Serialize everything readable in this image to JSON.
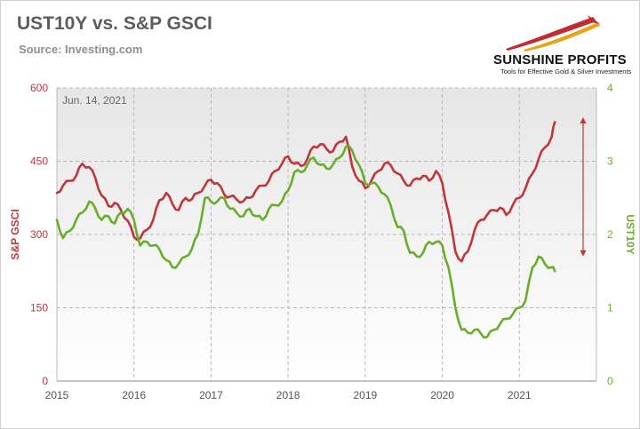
{
  "header": {
    "title": "UST10Y vs. S&P GSCI",
    "source": "Source: Investing.com"
  },
  "logo": {
    "name": "SUNSHINE PROFITS",
    "tagline": "Tools for Effective Gold & Silver Investments"
  },
  "colors": {
    "gsci": "#c0373b",
    "ust": "#6aad2c",
    "arrow": "#c0373b",
    "grid": "#b8b8b8",
    "plot_bg_top": "#e6e6e6",
    "plot_bg_bottom": "#ffffff"
  },
  "chart_data": {
    "type": "line",
    "title": "UST10Y vs. S&P GSCI",
    "annotation": "Jun. 14, 2021",
    "x_ticks": [
      "2015",
      "2016",
      "2017",
      "2018",
      "2019",
      "2020",
      "2021"
    ],
    "x_range": [
      2015.0,
      2022.0
    ],
    "left_axis": {
      "label": "S&P GSCI",
      "range": [
        0,
        600
      ],
      "ticks": [
        "0",
        "150",
        "300",
        "450",
        "600"
      ]
    },
    "right_axis": {
      "label": "UST10Y",
      "range": [
        0,
        4
      ],
      "ticks": [
        "0",
        "1",
        "2",
        "3",
        "4"
      ]
    },
    "grid": true,
    "series": [
      {
        "name": "S&P GSCI",
        "axis": "left",
        "x": [
          2015.0,
          2015.08,
          2015.17,
          2015.25,
          2015.33,
          2015.42,
          2015.5,
          2015.58,
          2015.67,
          2015.75,
          2015.83,
          2015.92,
          2016.0,
          2016.08,
          2016.17,
          2016.25,
          2016.33,
          2016.42,
          2016.5,
          2016.58,
          2016.67,
          2016.75,
          2016.83,
          2016.92,
          2017.0,
          2017.08,
          2017.17,
          2017.25,
          2017.33,
          2017.42,
          2017.5,
          2017.58,
          2017.67,
          2017.75,
          2017.83,
          2017.92,
          2018.0,
          2018.08,
          2018.17,
          2018.25,
          2018.33,
          2018.42,
          2018.5,
          2018.58,
          2018.67,
          2018.75,
          2018.83,
          2018.92,
          2019.0,
          2019.08,
          2019.17,
          2019.25,
          2019.33,
          2019.42,
          2019.5,
          2019.58,
          2019.67,
          2019.75,
          2019.83,
          2019.92,
          2020.0,
          2020.08,
          2020.17,
          2020.25,
          2020.33,
          2020.42,
          2020.5,
          2020.58,
          2020.67,
          2020.75,
          2020.83,
          2020.92,
          2021.0,
          2021.08,
          2021.17,
          2021.25,
          2021.33,
          2021.42,
          2021.46
        ],
        "y": [
          385,
          400,
          410,
          420,
          445,
          438,
          415,
          380,
          358,
          365,
          350,
          328,
          295,
          292,
          310,
          330,
          370,
          385,
          362,
          350,
          375,
          372,
          385,
          400,
          412,
          405,
          382,
          378,
          372,
          368,
          375,
          390,
          400,
          410,
          430,
          445,
          460,
          445,
          440,
          455,
          480,
          485,
          475,
          470,
          490,
          500,
          440,
          410,
          395,
          410,
          430,
          445,
          442,
          425,
          410,
          400,
          415,
          420,
          410,
          430,
          405,
          345,
          265,
          245,
          265,
          310,
          330,
          340,
          350,
          355,
          340,
          362,
          375,
          395,
          425,
          455,
          478,
          500,
          530
        ],
        "smooth": true
      },
      {
        "name": "UST10Y",
        "axis": "right",
        "x": [
          2015.0,
          2015.08,
          2015.17,
          2015.25,
          2015.33,
          2015.42,
          2015.5,
          2015.58,
          2015.67,
          2015.75,
          2015.83,
          2015.92,
          2016.0,
          2016.08,
          2016.17,
          2016.25,
          2016.33,
          2016.42,
          2016.5,
          2016.58,
          2016.67,
          2016.75,
          2016.83,
          2016.92,
          2017.0,
          2017.08,
          2017.17,
          2017.25,
          2017.33,
          2017.42,
          2017.5,
          2017.58,
          2017.67,
          2017.75,
          2017.83,
          2017.92,
          2018.0,
          2018.08,
          2018.17,
          2018.25,
          2018.33,
          2018.42,
          2018.5,
          2018.58,
          2018.67,
          2018.75,
          2018.83,
          2018.92,
          2019.0,
          2019.08,
          2019.17,
          2019.25,
          2019.33,
          2019.42,
          2019.5,
          2019.58,
          2019.67,
          2019.75,
          2019.83,
          2019.92,
          2020.0,
          2020.08,
          2020.17,
          2020.25,
          2020.33,
          2020.42,
          2020.5,
          2020.58,
          2020.67,
          2020.75,
          2020.83,
          2020.92,
          2021.0,
          2021.08,
          2021.17,
          2021.25,
          2021.33,
          2021.42,
          2021.46
        ],
        "y": [
          2.2,
          1.95,
          2.05,
          2.2,
          2.3,
          2.45,
          2.35,
          2.2,
          2.25,
          2.15,
          2.3,
          2.35,
          2.2,
          1.85,
          1.9,
          1.85,
          1.8,
          1.65,
          1.55,
          1.6,
          1.7,
          1.8,
          2.0,
          2.5,
          2.45,
          2.45,
          2.5,
          2.35,
          2.3,
          2.25,
          2.35,
          2.25,
          2.2,
          2.35,
          2.4,
          2.45,
          2.6,
          2.85,
          2.85,
          2.95,
          3.05,
          2.95,
          2.9,
          2.95,
          3.05,
          3.2,
          3.15,
          2.95,
          2.7,
          2.7,
          2.65,
          2.55,
          2.4,
          2.1,
          2.05,
          1.75,
          1.7,
          1.75,
          1.9,
          1.9,
          1.85,
          1.55,
          1.0,
          0.7,
          0.66,
          0.7,
          0.65,
          0.6,
          0.7,
          0.78,
          0.85,
          0.92,
          1.0,
          1.1,
          1.55,
          1.7,
          1.6,
          1.55,
          1.5
        ],
        "smooth": true
      }
    ]
  }
}
